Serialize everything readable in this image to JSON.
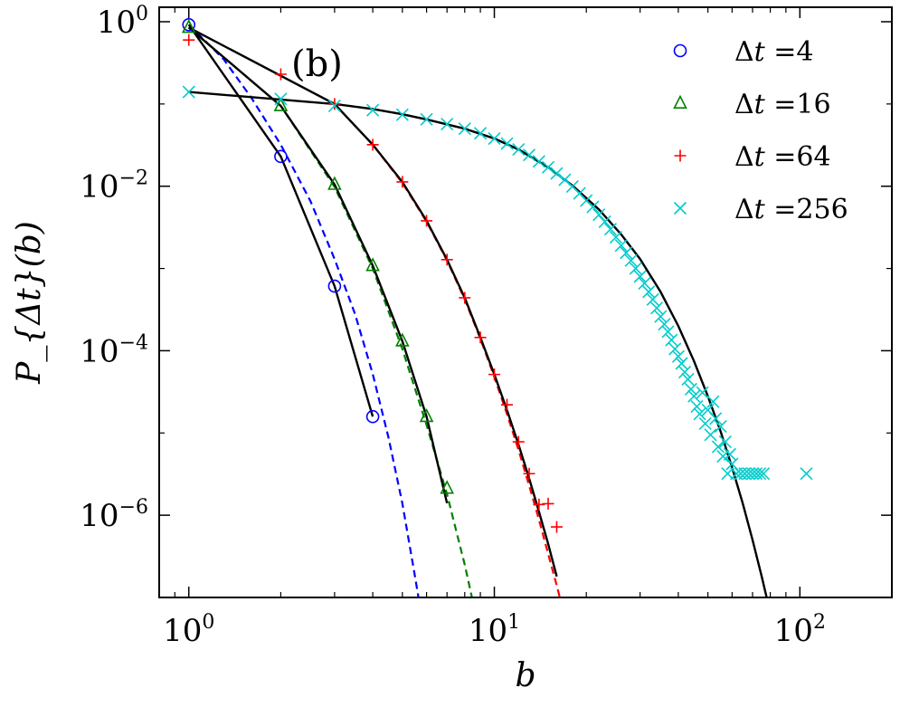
{
  "chart_data": {
    "type": "scatter",
    "panel_label": "(b)",
    "xlabel": "b",
    "ylabel": "P_{Δt}(b)",
    "x_scale": "log",
    "y_scale": "log",
    "xlim": [
      0.8,
      200
    ],
    "ylim": [
      1e-07,
      1.5
    ],
    "x_ticks": [
      {
        "value": 1,
        "base": "10",
        "exp": "0"
      },
      {
        "value": 10,
        "base": "10",
        "exp": "1"
      },
      {
        "value": 100,
        "base": "10",
        "exp": "2"
      }
    ],
    "y_ticks": [
      {
        "value": 1,
        "base": "10",
        "exp": "0"
      },
      {
        "value": 0.01,
        "base": "10",
        "exp": "−2"
      },
      {
        "value": 0.0001,
        "base": "10",
        "exp": "−4"
      },
      {
        "value": 1e-06,
        "base": "10",
        "exp": "−6"
      }
    ],
    "legend_position": "top-right",
    "series": [
      {
        "name": "Δt =4",
        "legend_prefix": "Δ",
        "legend_var": "t",
        "legend_value": "=4",
        "marker": "circle",
        "color": "#0000ff",
        "x": [
          1,
          2,
          3,
          4
        ],
        "y": [
          0.92,
          0.023,
          0.00061,
          1.58e-05
        ],
        "fit_dashed": {
          "x": [
            1,
            1.3,
            1.6,
            2,
            2.5,
            3,
            3.5,
            4,
            4.5,
            5,
            5.5,
            5.7
          ],
          "y": [
            0.92,
            0.35,
            0.12,
            0.032,
            0.0066,
            0.0013,
            0.00028,
            5.2e-05,
            8.9e-06,
            1.4e-06,
            1.8e-07,
            8e-08
          ]
        },
        "fit_solid": {
          "x": [
            1,
            2,
            3,
            4
          ],
          "y": [
            0.92,
            0.023,
            0.00061,
            1.58e-05
          ]
        }
      },
      {
        "name": "Δt =16",
        "legend_prefix": "Δ",
        "legend_var": "t",
        "legend_value": "=16",
        "marker": "triangle",
        "color": "#008000",
        "x": [
          1,
          2,
          3,
          4,
          5,
          6,
          7
        ],
        "y": [
          0.85,
          0.095,
          0.0105,
          0.00108,
          0.000131,
          1.58e-05,
          2.12e-06
        ],
        "fit_dashed": {
          "x": [
            1,
            2,
            3,
            4,
            5,
            6,
            7,
            7.5,
            8,
            8.5
          ],
          "y": [
            0.85,
            0.095,
            0.0098,
            0.001,
            0.000105,
            1.25e-05,
            1.8e-06,
            6.5e-07,
            2.5e-07,
            9e-08
          ]
        },
        "fit_solid": {
          "x": [
            1,
            2,
            3,
            4,
            5,
            6,
            7
          ],
          "y": [
            0.85,
            0.095,
            0.0105,
            0.00108,
            0.000131,
            1.58e-05,
            1.4e-06
          ]
        }
      },
      {
        "name": "Δt =64",
        "legend_prefix": "Δ",
        "legend_var": "t",
        "legend_value": "=64",
        "marker": "plus",
        "color": "#ff0000",
        "x": [
          1,
          2,
          3,
          4,
          5,
          6,
          7,
          8,
          9,
          10,
          11,
          12,
          13,
          14,
          15,
          16
        ],
        "y": [
          0.6,
          0.23,
          0.1,
          0.032,
          0.0113,
          0.0038,
          0.00128,
          0.00044,
          0.000145,
          5.15e-05,
          2.2e-05,
          7.8e-06,
          3.2e-06,
          1.35e-06,
          1.38e-06,
          7.2e-07
        ],
        "fit_dashed": {
          "x": [
            3,
            4,
            5,
            6,
            7,
            8,
            9,
            10,
            11,
            12,
            13,
            14,
            15,
            16,
            17,
            18
          ],
          "y": [
            0.1,
            0.032,
            0.011,
            0.0037,
            0.00125,
            0.00042,
            0.00014,
            4.8e-05,
            1.7e-05,
            6.2e-06,
            2.3e-06,
            8.8e-07,
            3.4e-07,
            1.4e-07,
            5.8e-08,
            2.5e-08
          ]
        },
        "fit_solid": {
          "x": [
            1,
            3,
            4,
            5,
            6,
            7,
            8,
            9,
            10,
            11,
            12,
            13,
            14,
            15,
            16
          ],
          "y": [
            0.85,
            0.1,
            0.032,
            0.0113,
            0.0038,
            0.00128,
            0.00044,
            0.000145,
            5.15e-05,
            1.9e-05,
            7.2e-06,
            2.8e-06,
            1.1e-06,
            4.5e-07,
            1.8e-07
          ]
        }
      },
      {
        "name": "Δt =256",
        "legend_prefix": "Δ",
        "legend_var": "t",
        "legend_value": "=256",
        "marker": "x",
        "color": "#00cccc",
        "x": [
          1,
          2,
          3,
          4,
          5,
          6,
          7,
          8,
          9,
          10,
          11,
          12,
          13,
          14,
          15,
          16,
          17,
          18,
          19,
          20,
          21,
          22,
          23,
          24,
          25,
          26,
          27,
          28,
          29,
          30,
          31,
          32,
          33,
          34,
          35,
          36,
          37,
          38,
          39,
          40,
          41,
          42,
          43,
          44,
          45,
          46,
          47,
          48,
          49,
          50,
          51,
          52,
          53,
          54,
          55,
          56,
          57,
          58,
          59,
          60,
          62,
          64,
          66,
          68,
          70,
          72,
          74,
          76,
          105
        ],
        "y": [
          0.14,
          0.115,
          0.095,
          0.084,
          0.074,
          0.065,
          0.057,
          0.05,
          0.044,
          0.038,
          0.033,
          0.028,
          0.024,
          0.02,
          0.017,
          0.0143,
          0.012,
          0.0099,
          0.0082,
          0.0067,
          0.0056,
          0.0045,
          0.0037,
          0.003,
          0.0024,
          0.0019,
          0.00155,
          0.00125,
          0.001,
          0.0008,
          0.00066,
          0.00052,
          0.00042,
          0.00033,
          0.00026,
          0.00021,
          0.00017,
          0.000135,
          0.000105,
          8.5e-05,
          7e-05,
          5.5e-05,
          4.5e-05,
          3.4e-05,
          2.8e-05,
          2.1e-05,
          1.7e-05,
          3.1e-05,
          1.3e-05,
          1.9e-05,
          9.5e-06,
          2.4e-05,
          1.5e-05,
          6.8e-06,
          1.2e-05,
          5.2e-06,
          7.8e-06,
          3.2e-06,
          5.5e-06,
          4.2e-06,
          3.2e-06,
          3.2e-06,
          3.2e-06,
          3.2e-06,
          3.2e-06,
          3.2e-06,
          3.2e-06,
          3.2e-06,
          3.2e-06
        ],
        "fit_dashed": {
          "x": [
            3,
            4,
            5,
            6,
            8,
            10,
            12,
            15,
            18,
            22,
            26,
            30,
            35,
            40,
            45,
            50,
            55,
            60,
            65,
            70,
            75,
            80,
            85,
            90
          ],
          "y": [
            0.1,
            0.087,
            0.075,
            0.065,
            0.05,
            0.038,
            0.028,
            0.017,
            0.0102,
            0.0052,
            0.0026,
            0.0013,
            0.00052,
            0.0002,
            7.5e-05,
            2.8e-05,
            1.05e-05,
            3.8e-06,
            1.4e-06,
            5e-07,
            1.8e-07,
            6.5e-08,
            2.5e-08,
            1e-08
          ]
        },
        "fit_solid": {
          "x": [
            1,
            3,
            4,
            5,
            6,
            8,
            10,
            12,
            15,
            18,
            22,
            26,
            30,
            35,
            40,
            45,
            50,
            55,
            60,
            65,
            70,
            75,
            80,
            85,
            90
          ],
          "y": [
            0.14,
            0.1,
            0.087,
            0.075,
            0.065,
            0.05,
            0.038,
            0.028,
            0.017,
            0.0102,
            0.0052,
            0.0026,
            0.0013,
            0.00052,
            0.0002,
            7.5e-05,
            2.8e-05,
            1.05e-05,
            3.8e-06,
            1.4e-06,
            5e-07,
            1.8e-07,
            6.5e-08,
            2.5e-08,
            1e-08
          ]
        }
      }
    ]
  }
}
